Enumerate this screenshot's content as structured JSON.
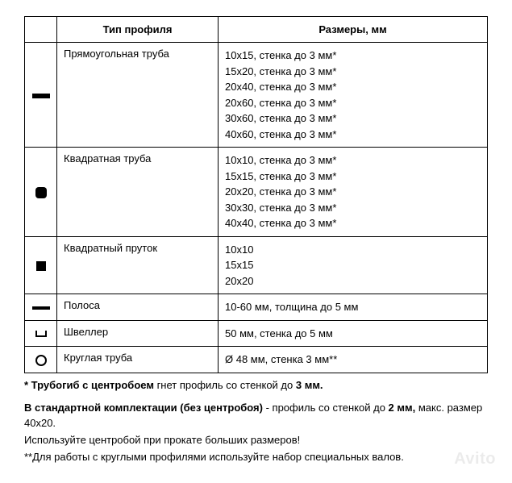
{
  "table": {
    "headers": {
      "icon": "",
      "type": "Тип профиля",
      "sizes": "Размеры, мм"
    },
    "rows": [
      {
        "icon": "rect",
        "type": "Прямоугольная труба",
        "sizes": [
          "10х15, стенка до 3 мм*",
          "15х20, стенка до 3 мм*",
          "20х40, стенка до 3 мм*",
          "20х60, стенка до 3 мм*",
          "30х60, стенка до 3 мм*",
          "40х60, стенка до 3 мм*"
        ]
      },
      {
        "icon": "rsquare",
        "type": "Квадратная труба",
        "sizes": [
          "10х10, стенка до 3 мм*",
          "15х15, стенка до 3 мм*",
          "20х20, стенка до 3 мм*",
          "30х30, стенка до 3 мм*",
          "40х40, стенка до 3 мм*"
        ]
      },
      {
        "icon": "square",
        "type": "Квадратный пруток",
        "sizes": [
          "10х10",
          "15х15",
          "20х20"
        ]
      },
      {
        "icon": "strip",
        "type": "Полоса",
        "sizes": [
          "10-60 мм, толщина до 5 мм"
        ]
      },
      {
        "icon": "channel",
        "type": "Швеллер",
        "sizes": [
          "50 мм, стенка до 5 мм"
        ]
      },
      {
        "icon": "circle",
        "type": "Круглая труба",
        "sizes": [
          "Ø 48 мм, стенка 3 мм**"
        ]
      }
    ]
  },
  "footnotes": {
    "l1a": "* Трубогиб с центробоем",
    "l1b": " гнет профиль со стенкой до ",
    "l1c": "3 мм.",
    "l2a": "В стандартной комплектации (без центробоя)",
    "l2b": " - профиль со стенкой до ",
    "l2c": "2 мм,",
    "l2d": " макс. размер 40х20.",
    "l3": "Используйте центробой при прокате больших размеров!",
    "l4": "**Для работы с круглыми профилями используйте набор специальных валов."
  },
  "watermark": "Avito"
}
